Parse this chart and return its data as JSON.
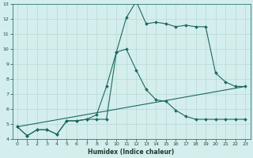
{
  "xlabel": "Humidex (Indice chaleur)",
  "background_color": "#d4eeed",
  "grid_color": "#b8d8d4",
  "line_color": "#1a6b5a",
  "xlim": [
    -0.5,
    23.5
  ],
  "ylim": [
    4,
    13
  ],
  "xticks": [
    0,
    1,
    2,
    3,
    4,
    5,
    6,
    7,
    8,
    9,
    10,
    11,
    12,
    13,
    14,
    15,
    16,
    17,
    18,
    19,
    20,
    21,
    22,
    23
  ],
  "yticks": [
    4,
    5,
    6,
    7,
    8,
    9,
    10,
    11,
    12,
    13
  ],
  "line1_x": [
    0,
    1,
    2,
    3,
    4,
    5,
    6,
    7,
    8,
    9,
    10,
    11,
    12,
    13,
    14,
    15,
    16,
    17,
    18,
    19,
    20,
    21,
    22,
    23
  ],
  "line1_y": [
    4.8,
    4.2,
    4.6,
    4.6,
    4.3,
    5.2,
    5.2,
    5.3,
    5.6,
    7.5,
    9.8,
    10.0,
    8.6,
    7.3,
    6.6,
    6.5,
    5.9,
    5.5,
    5.3,
    5.3,
    5.3,
    5.3,
    5.3,
    5.3
  ],
  "line2_x": [
    0,
    1,
    2,
    3,
    4,
    5,
    6,
    7,
    8,
    9,
    10,
    11,
    12,
    13,
    14,
    15,
    16,
    17,
    18,
    19,
    20,
    21,
    22,
    23
  ],
  "line2_y": [
    4.8,
    4.2,
    4.6,
    4.6,
    4.3,
    5.2,
    5.2,
    5.3,
    5.3,
    5.3,
    9.8,
    12.1,
    13.2,
    11.7,
    11.8,
    11.7,
    11.5,
    11.6,
    11.5,
    11.5,
    8.4,
    7.8,
    7.5,
    7.5
  ],
  "line3_x": [
    0,
    23
  ],
  "line3_y": [
    4.8,
    7.5
  ]
}
